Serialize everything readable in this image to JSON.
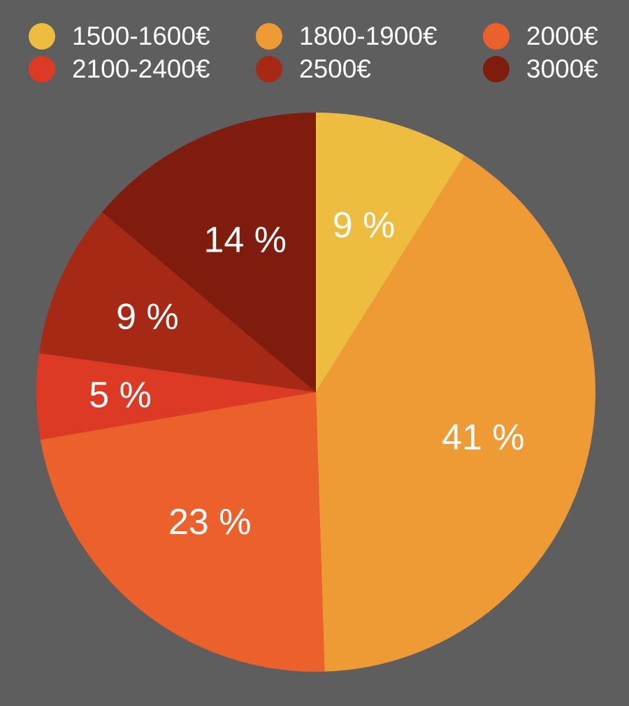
{
  "chart_data": {
    "type": "pie",
    "title": "",
    "legend_position": "top",
    "categories": [
      "1500-1600€",
      "1800-1900€",
      "2000€",
      "2100-2400€",
      "2500€",
      "3000€"
    ],
    "values": [
      9,
      41,
      23,
      5,
      9,
      14
    ],
    "value_labels": [
      "9 %",
      "41 %",
      "23 %",
      "5 %",
      "9 %",
      "14 %"
    ],
    "colors": [
      "#EEBC3E",
      "#EF9B35",
      "#EC612B",
      "#DC3A25",
      "#A52915",
      "#801C0E"
    ],
    "start_angle_deg": 0,
    "direction": "clockwise"
  },
  "background_color": "#5e5e5e"
}
